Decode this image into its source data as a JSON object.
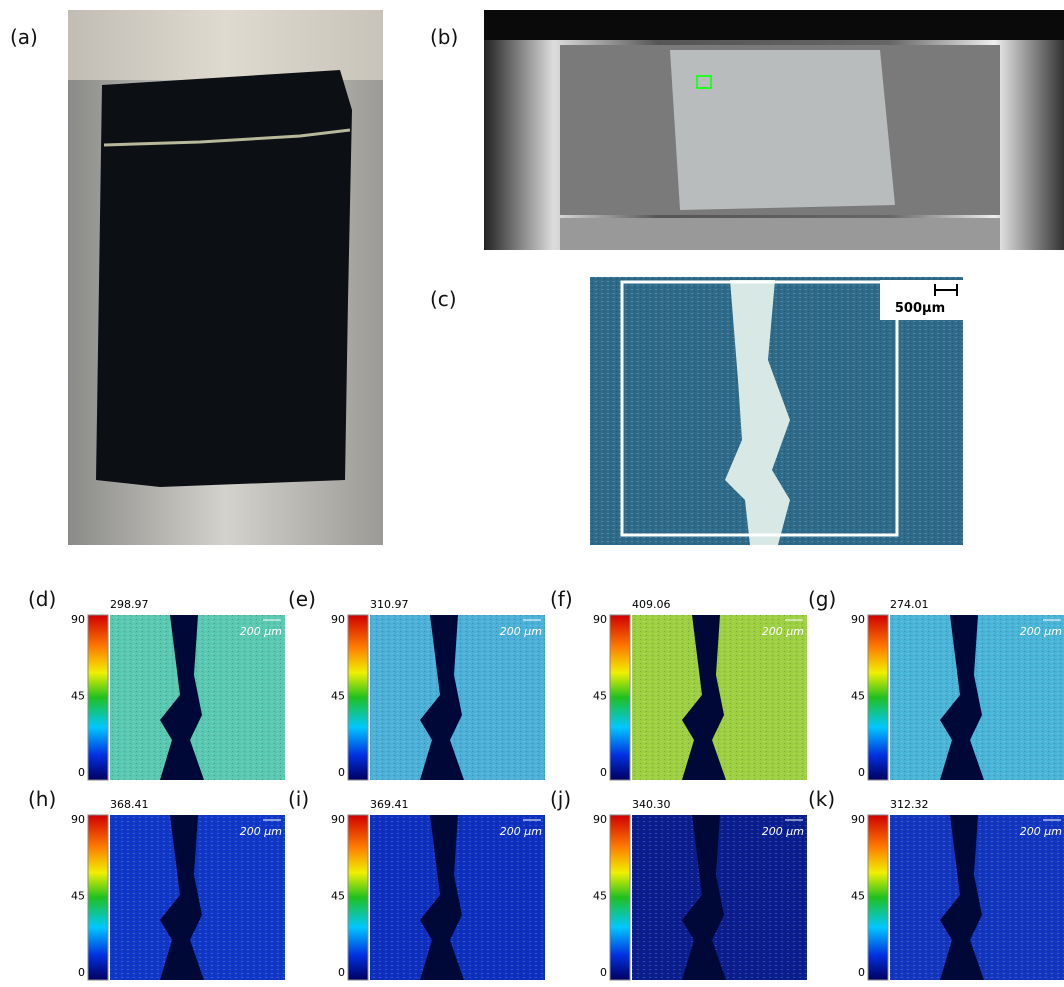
{
  "panel_labels": {
    "a": "(a)",
    "b": "(b)",
    "c": "(c)"
  },
  "scale_bar_c": "500µm",
  "colorbar_ticks": [
    "90",
    "45",
    "0"
  ],
  "map_scale": "200 μm",
  "maps": [
    {
      "label": "(d)",
      "header": "298.97"
    },
    {
      "label": "(e)",
      "header": "310.97"
    },
    {
      "label": "(f)",
      "header": "409.06"
    },
    {
      "label": "(g)",
      "header": "274.01"
    },
    {
      "label": "(h)",
      "header": "368.41"
    },
    {
      "label": "(i)",
      "header": "369.41"
    },
    {
      "label": "(j)",
      "header": "340.30"
    },
    {
      "label": "(k)",
      "header": "312.32"
    }
  ]
}
